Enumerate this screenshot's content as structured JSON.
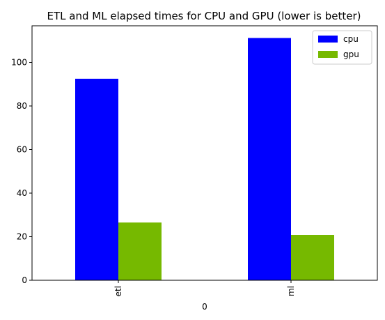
{
  "chart_data": {
    "type": "bar",
    "title": "ETL and ML elapsed times for CPU and GPU (lower is better)",
    "xlabel": "0",
    "ylabel": "",
    "categories": [
      "etl",
      "ml"
    ],
    "series": [
      {
        "name": "cpu",
        "color": "#0000ff",
        "values": [
          92.5,
          111.2
        ]
      },
      {
        "name": "gpu",
        "color": "#76b900",
        "values": [
          26.5,
          20.8
        ]
      }
    ],
    "ylim": [
      0,
      116.8
    ],
    "yticks": [
      0,
      20,
      40,
      60,
      80,
      100
    ],
    "grid": false,
    "legend_position": "top-right",
    "x_tick_rotation": "vertical"
  }
}
